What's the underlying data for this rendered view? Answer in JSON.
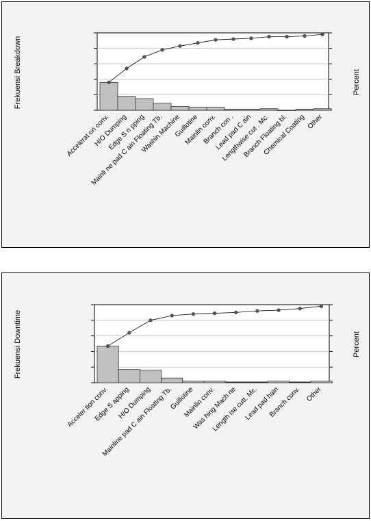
{
  "chart_data": [
    {
      "type": "pareto",
      "ylabel": "Frekuensi Breakdown",
      "y2label": "Percent",
      "categories": [
        "Acceleration conv.",
        "H/O Dumping",
        "Edge Snapping",
        "Mainline pad Chain Floating Tb.",
        "Washing Machine",
        "Guillotine",
        "Mainline conv.",
        "Branch conv.",
        "Lead pad Chain",
        "Lengthwise cutt. Mc.",
        "Branch Floating Tbl.",
        "Chemical Coating",
        "Other"
      ],
      "tick_labels": [
        "Accelerat on conv.",
        "H/O Dumping",
        "Edge S n pping",
        "Mainli ne pad C ain Floating Tb.",
        "Washin Machine",
        "Guillotine",
        "Mainlin conv.",
        "Branch con .",
        "Lead pad C ain",
        "Lengthwise cut . Mc.",
        "Branch Floating  bl.",
        "Chemical Coating",
        "Other"
      ],
      "values": [
        36,
        18,
        15,
        9,
        5,
        4,
        4,
        1,
        1,
        2,
        0,
        1,
        2
      ],
      "cumulative_percent": [
        36,
        54,
        69,
        78,
        83,
        87,
        91,
        92,
        93,
        95,
        95,
        96,
        98
      ],
      "ylim": [
        0,
        100
      ],
      "grid": true,
      "series_colors": {
        "bars": "#c0c0c0",
        "line": "#000000"
      }
    },
    {
      "type": "pareto",
      "ylabel": "Frekuensi Downtime",
      "y2label": "Percent",
      "categories": [
        "Acceleration conv.",
        "Edge Snapping",
        "H/O Dumping",
        "Mainline pad Chain Floating Tb.",
        "Guillotine",
        "Mainline conv.",
        "Washing Machine",
        "Lengthwise cutt. Mc.",
        "Lead pad Chain",
        "Branch conv.",
        "Other"
      ],
      "tick_labels": [
        "Acceler tion conv.",
        "Edge S apping",
        "H/O Dumping",
        "Mainline pad C ain Floating Tb.",
        "Guillotine",
        "Mainlin conv.",
        "Was hing Mach ne",
        "Length ise cutt. Mc.",
        "Lead pad  hain",
        "Branch conv.",
        "Other"
      ],
      "values": [
        47,
        17,
        16,
        6,
        2,
        2,
        1,
        1,
        2,
        1,
        2
      ],
      "cumulative_percent": [
        47,
        64,
        80,
        86,
        88,
        89,
        90,
        92,
        93,
        95,
        98
      ],
      "ylim": [
        0,
        100
      ],
      "grid": true,
      "series_colors": {
        "bars": "#c0c0c0",
        "line": "#000000"
      }
    }
  ]
}
